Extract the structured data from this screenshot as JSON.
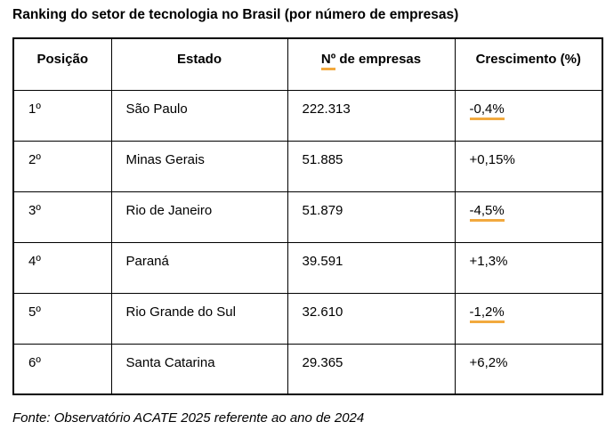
{
  "colors": {
    "accent": "#F2A93E",
    "border": "#000000",
    "text": "#000000",
    "background": "#FFFFFF"
  },
  "title": "Ranking do setor de tecnologia no Brasil (por número de empresas)",
  "table": {
    "columns": {
      "posicao": "Posição",
      "estado": "Estado",
      "empresas_underlined_part": "Nº",
      "empresas_rest_part": " de empresas",
      "crescimento": "Crescimento (%)"
    },
    "rows": [
      {
        "posicao": "1º",
        "estado": "São Paulo",
        "empresas": "222.313",
        "crescimento": "-0,4%",
        "crescimento_underlined": true
      },
      {
        "posicao": "2º",
        "estado": "Minas Gerais",
        "empresas": "51.885",
        "crescimento": "+0,15%",
        "crescimento_underlined": false
      },
      {
        "posicao": "3º",
        "estado": "Rio de Janeiro",
        "empresas": "51.879",
        "crescimento": "-4,5%",
        "crescimento_underlined": true
      },
      {
        "posicao": "4º",
        "estado": "Paraná",
        "empresas": "39.591",
        "crescimento": "+1,3%",
        "crescimento_underlined": false
      },
      {
        "posicao": "5º",
        "estado": "Rio Grande do Sul",
        "empresas": "32.610",
        "crescimento": "-1,2%",
        "crescimento_underlined": true
      },
      {
        "posicao": "6º",
        "estado": "Santa Catarina",
        "empresas": "29.365",
        "crescimento": "+6,2%",
        "crescimento_underlined": false
      }
    ]
  },
  "footer": {
    "source": "Fonte: Observatório ACATE 2025 referente ao ano de 2024"
  }
}
